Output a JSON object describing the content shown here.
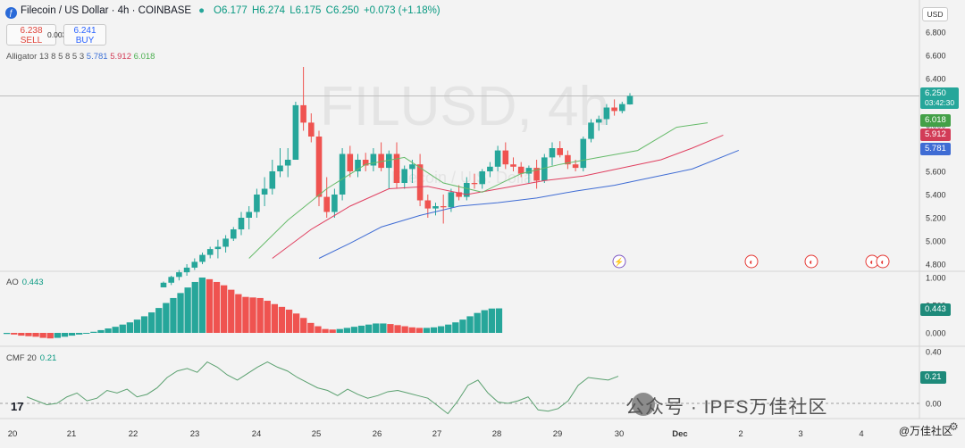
{
  "header": {
    "title": "Filecoin / US Dollar · 4h · COINBASE",
    "open": "O6.177",
    "high": "H6.274",
    "low": "L6.175",
    "close": "C6.250",
    "change": "+0.073 (+1.18%)"
  },
  "trade": {
    "sell_price": "6.238",
    "sell_label": "SELL",
    "spread": "0.003",
    "buy_price": "6.241",
    "buy_label": "BUY"
  },
  "alligator": {
    "label": "Alligator 13 8 5 8 5 3",
    "v1": "5.781",
    "v2": "5.912",
    "v3": "6.018"
  },
  "currency": "USD",
  "price_tag": {
    "value": "6.250",
    "countdown": "03:42:30"
  },
  "tags": {
    "lips": "6.018",
    "teeth": "5.912",
    "jaw": "5.781",
    "ao": "0.443",
    "cmf": "0.21"
  },
  "ao_label": {
    "name": "AO",
    "value": "0.443"
  },
  "cmf_label": {
    "name": "CMF 20",
    "value": "0.21"
  },
  "watermark": {
    "bg": "FILUSD, 4h",
    "sub": "Filecoin / U.S. Dollar"
  },
  "footer": {
    "wechat": "公众号 · IPFS万佳社区",
    "credit": "@万佳社区",
    "logo": "17"
  },
  "colors": {
    "up": "#26a69a",
    "down": "#ef5350",
    "lips": "#66bb6a",
    "teeth": "#e04060",
    "jaw": "#3f6cd4"
  },
  "chart_data": {
    "type": "candlestick",
    "price_axis": [
      6.8,
      6.6,
      6.4,
      6.2,
      6.0,
      5.8,
      5.6,
      5.4,
      5.2,
      5.0,
      4.8
    ],
    "ao_axis": [
      1.0,
      0.5,
      0.0
    ],
    "cmf_axis": [
      0.4,
      0.2,
      0.0
    ],
    "x_ticks": [
      "20",
      "21",
      "22",
      "23",
      "24",
      "25",
      "26",
      "27",
      "28",
      "29",
      "30",
      "Dec",
      "2",
      "3",
      "4"
    ],
    "candles": [
      [
        4.6,
        4.65,
        4.6,
        4.64
      ],
      [
        4.64,
        4.7,
        4.62,
        4.69
      ],
      [
        4.69,
        4.75,
        4.66,
        4.73
      ],
      [
        4.73,
        4.8,
        4.7,
        4.77
      ],
      [
        4.77,
        4.85,
        4.75,
        4.82
      ],
      [
        4.82,
        4.9,
        4.8,
        4.88
      ],
      [
        4.88,
        4.95,
        4.85,
        4.93
      ],
      [
        4.93,
        5.01,
        4.85,
        4.95
      ],
      [
        4.95,
        5.05,
        4.9,
        5.02
      ],
      [
        5.02,
        5.12,
        5.0,
        5.1
      ],
      [
        5.1,
        5.25,
        5.05,
        5.2
      ],
      [
        5.2,
        5.3,
        5.1,
        5.25
      ],
      [
        5.25,
        5.45,
        5.2,
        5.4
      ],
      [
        5.4,
        5.55,
        5.3,
        5.45
      ],
      [
        5.45,
        5.7,
        5.4,
        5.6
      ],
      [
        5.6,
        5.8,
        5.55,
        5.65
      ],
      [
        5.65,
        5.8,
        5.55,
        5.7
      ],
      [
        5.7,
        6.2,
        5.7,
        6.17
      ],
      [
        6.17,
        6.5,
        5.95,
        6.02
      ],
      [
        6.02,
        6.1,
        5.85,
        5.9
      ],
      [
        5.9,
        5.95,
        5.3,
        5.38
      ],
      [
        5.38,
        5.55,
        5.2,
        5.25
      ],
      [
        5.25,
        5.45,
        5.2,
        5.4
      ],
      [
        5.4,
        5.8,
        5.35,
        5.75
      ],
      [
        5.75,
        5.82,
        5.55,
        5.6
      ],
      [
        5.6,
        5.75,
        5.55,
        5.7
      ],
      [
        5.7,
        5.76,
        5.6,
        5.65
      ],
      [
        5.65,
        5.8,
        5.6,
        5.75
      ],
      [
        5.75,
        5.85,
        5.6,
        5.63
      ],
      [
        5.63,
        5.78,
        5.45,
        5.75
      ],
      [
        5.75,
        5.85,
        5.45,
        5.5
      ],
      [
        5.5,
        5.65,
        5.45,
        5.62
      ],
      [
        5.62,
        5.7,
        5.5,
        5.66
      ],
      [
        5.66,
        5.75,
        5.3,
        5.35
      ],
      [
        5.35,
        5.4,
        5.2,
        5.28
      ],
      [
        5.28,
        5.33,
        5.22,
        5.3
      ],
      [
        5.3,
        5.4,
        5.15,
        5.29
      ],
      [
        5.29,
        5.45,
        5.25,
        5.42
      ],
      [
        5.42,
        5.48,
        5.35,
        5.38
      ],
      [
        5.38,
        5.55,
        5.35,
        5.5
      ],
      [
        5.5,
        5.58,
        5.45,
        5.49
      ],
      [
        5.49,
        5.62,
        5.45,
        5.6
      ],
      [
        5.6,
        5.68,
        5.55,
        5.64
      ],
      [
        5.64,
        5.82,
        5.6,
        5.78
      ],
      [
        5.78,
        5.85,
        5.62,
        5.66
      ],
      [
        5.66,
        5.72,
        5.6,
        5.64
      ],
      [
        5.64,
        5.68,
        5.55,
        5.58
      ],
      [
        5.58,
        5.65,
        5.5,
        5.63
      ],
      [
        5.63,
        5.7,
        5.45,
        5.52
      ],
      [
        5.52,
        5.75,
        5.5,
        5.72
      ],
      [
        5.72,
        5.85,
        5.65,
        5.8
      ],
      [
        5.8,
        5.86,
        5.72,
        5.74
      ],
      [
        5.74,
        5.78,
        5.62,
        5.66
      ],
      [
        5.66,
        5.7,
        5.6,
        5.63
      ],
      [
        5.63,
        5.9,
        5.6,
        5.88
      ],
      [
        5.88,
        6.05,
        5.85,
        6.02
      ],
      [
        6.02,
        6.08,
        5.95,
        6.05
      ],
      [
        6.05,
        6.18,
        6.0,
        6.15
      ],
      [
        6.15,
        6.22,
        6.08,
        6.12
      ],
      [
        6.12,
        6.2,
        6.1,
        6.18
      ],
      [
        6.177,
        6.274,
        6.175,
        6.25
      ]
    ],
    "ao": [
      -0.02,
      -0.03,
      -0.05,
      -0.06,
      -0.07,
      -0.09,
      -0.1,
      -0.09,
      -0.07,
      -0.05,
      -0.03,
      -0.01,
      0.02,
      0.05,
      0.08,
      0.11,
      0.15,
      0.19,
      0.24,
      0.3,
      0.37,
      0.45,
      0.54,
      0.63,
      0.72,
      0.82,
      0.92,
      1.0,
      0.97,
      0.92,
      0.86,
      0.78,
      0.7,
      0.65,
      0.64,
      0.63,
      0.58,
      0.52,
      0.47,
      0.42,
      0.35,
      0.27,
      0.18,
      0.12,
      0.07,
      0.06,
      0.07,
      0.09,
      0.11,
      0.13,
      0.15,
      0.17,
      0.17,
      0.16,
      0.14,
      0.12,
      0.1,
      0.09,
      0.09,
      0.1,
      0.12,
      0.15,
      0.19,
      0.24,
      0.3,
      0.36,
      0.41,
      0.44,
      0.443
    ],
    "cmf": [
      0.05,
      0.02,
      -0.01,
      0.0,
      0.05,
      0.08,
      0.02,
      0.04,
      0.1,
      0.08,
      0.11,
      0.05,
      0.07,
      0.12,
      0.2,
      0.25,
      0.27,
      0.24,
      0.32,
      0.28,
      0.22,
      0.18,
      0.23,
      0.28,
      0.32,
      0.28,
      0.25,
      0.2,
      0.16,
      0.12,
      0.1,
      0.06,
      0.11,
      0.07,
      0.04,
      0.06,
      0.09,
      0.1,
      0.08,
      0.06,
      0.04,
      -0.02,
      -0.08,
      0.02,
      0.14,
      0.18,
      0.08,
      0.01,
      0.0,
      0.02,
      0.05,
      -0.05,
      -0.06,
      -0.04,
      0.02,
      0.14,
      0.2,
      0.19,
      0.18,
      0.21
    ],
    "lips": [
      [
        11,
        4.85
      ],
      [
        16,
        5.18
      ],
      [
        21,
        5.45
      ],
      [
        26,
        5.66
      ],
      [
        31,
        5.72
      ],
      [
        36,
        5.5
      ],
      [
        41,
        5.42
      ],
      [
        46,
        5.58
      ],
      [
        51,
        5.66
      ],
      [
        56,
        5.72
      ],
      [
        61,
        5.78
      ],
      [
        66,
        5.98
      ],
      [
        70,
        6.018
      ]
    ],
    "teeth": [
      [
        14,
        4.85
      ],
      [
        19,
        5.1
      ],
      [
        24,
        5.3
      ],
      [
        29,
        5.45
      ],
      [
        34,
        5.47
      ],
      [
        39,
        5.4
      ],
      [
        44,
        5.46
      ],
      [
        49,
        5.52
      ],
      [
        54,
        5.56
      ],
      [
        59,
        5.63
      ],
      [
        64,
        5.7
      ],
      [
        68,
        5.8
      ],
      [
        72,
        5.912
      ]
    ],
    "jaw": [
      [
        20,
        4.85
      ],
      [
        24,
        4.98
      ],
      [
        28,
        5.12
      ],
      [
        33,
        5.22
      ],
      [
        38,
        5.3
      ],
      [
        43,
        5.33
      ],
      [
        48,
        5.37
      ],
      [
        53,
        5.43
      ],
      [
        58,
        5.48
      ],
      [
        63,
        5.55
      ],
      [
        68,
        5.62
      ],
      [
        74,
        5.781
      ]
    ]
  }
}
